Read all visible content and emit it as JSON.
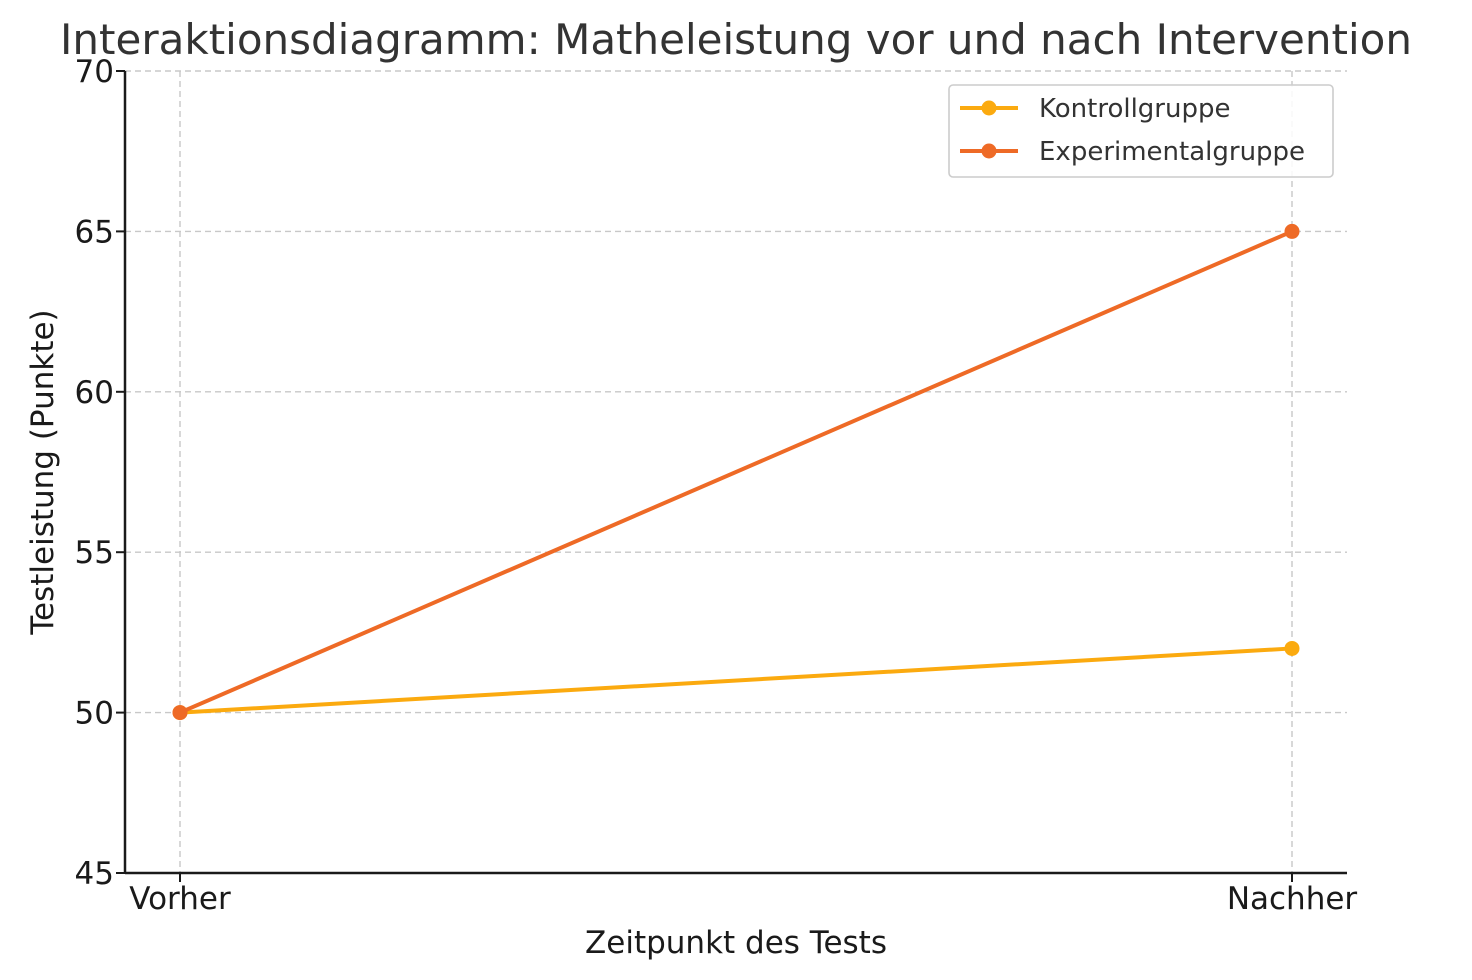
{
  "chart_data": {
    "type": "line",
    "title": "Interaktionsdiagramm: Matheleistung vor und nach Intervention",
    "xlabel": "Zeitpunkt des Tests",
    "ylabel": "Testleistung (Punkte)",
    "categories": [
      "Vorher",
      "Nachher"
    ],
    "ylim": [
      45,
      70
    ],
    "yticks": [
      45,
      50,
      55,
      60,
      65,
      70
    ],
    "grid": true,
    "legend_position": "top-right",
    "series": [
      {
        "name": "Kontrollgruppe",
        "values": [
          50,
          52
        ],
        "color": "#FBAA0F"
      },
      {
        "name": "Experimentalgruppe",
        "values": [
          50,
          65
        ],
        "color": "#EE6A26"
      }
    ]
  }
}
